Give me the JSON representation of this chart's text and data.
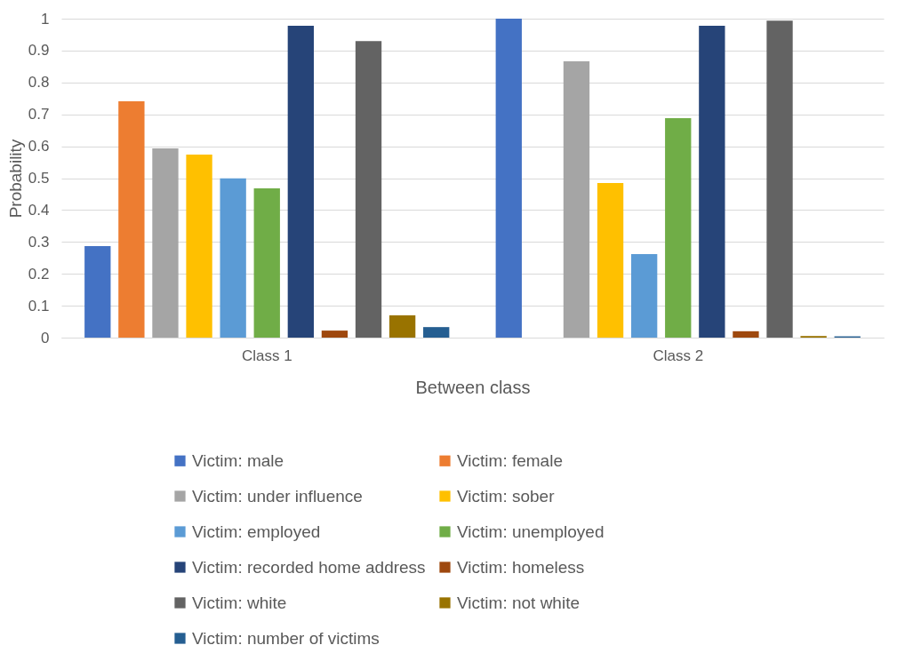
{
  "chart_data": {
    "type": "bar",
    "xlabel": "Between class",
    "ylabel": "Probability",
    "categories": [
      "Class 1",
      "Class 2"
    ],
    "series": [
      {
        "name": "Victim: male",
        "color": "#4472c4",
        "values": [
          0.287,
          1.0
        ]
      },
      {
        "name": "Victim: female",
        "color": "#ed7d31",
        "values": [
          0.741,
          0
        ]
      },
      {
        "name": "Victim: under influence",
        "color": "#a5a5a5",
        "values": [
          0.593,
          0.866
        ]
      },
      {
        "name": "Victim: sober",
        "color": "#ffc000",
        "values": [
          0.574,
          0.485
        ]
      },
      {
        "name": "Victim: employed",
        "color": "#5b9bd5",
        "values": [
          0.499,
          0.262
        ]
      },
      {
        "name": "Victim: unemployed",
        "color": "#70ad47",
        "values": [
          0.468,
          0.688
        ]
      },
      {
        "name": "Victim: recorded home address",
        "color": "#264478",
        "values": [
          0.978,
          0.978
        ]
      },
      {
        "name": "Victim: homeless",
        "color": "#9e480e",
        "values": [
          0.022,
          0.02
        ]
      },
      {
        "name": "Victim: white",
        "color": "#636363",
        "values": [
          0.93,
          0.994
        ]
      },
      {
        "name": "Victim: not white",
        "color": "#997300",
        "values": [
          0.07,
          0.005
        ]
      },
      {
        "name": "Victim: number of victims",
        "color": "#255e91",
        "values": [
          0.033,
          0.004
        ]
      }
    ],
    "ylim": [
      0,
      1
    ],
    "yticks": [
      0,
      0.1,
      0.2,
      0.3,
      0.4,
      0.5,
      0.6,
      0.7,
      0.8,
      0.9,
      1
    ],
    "grid": "y",
    "legend": "bottom"
  }
}
